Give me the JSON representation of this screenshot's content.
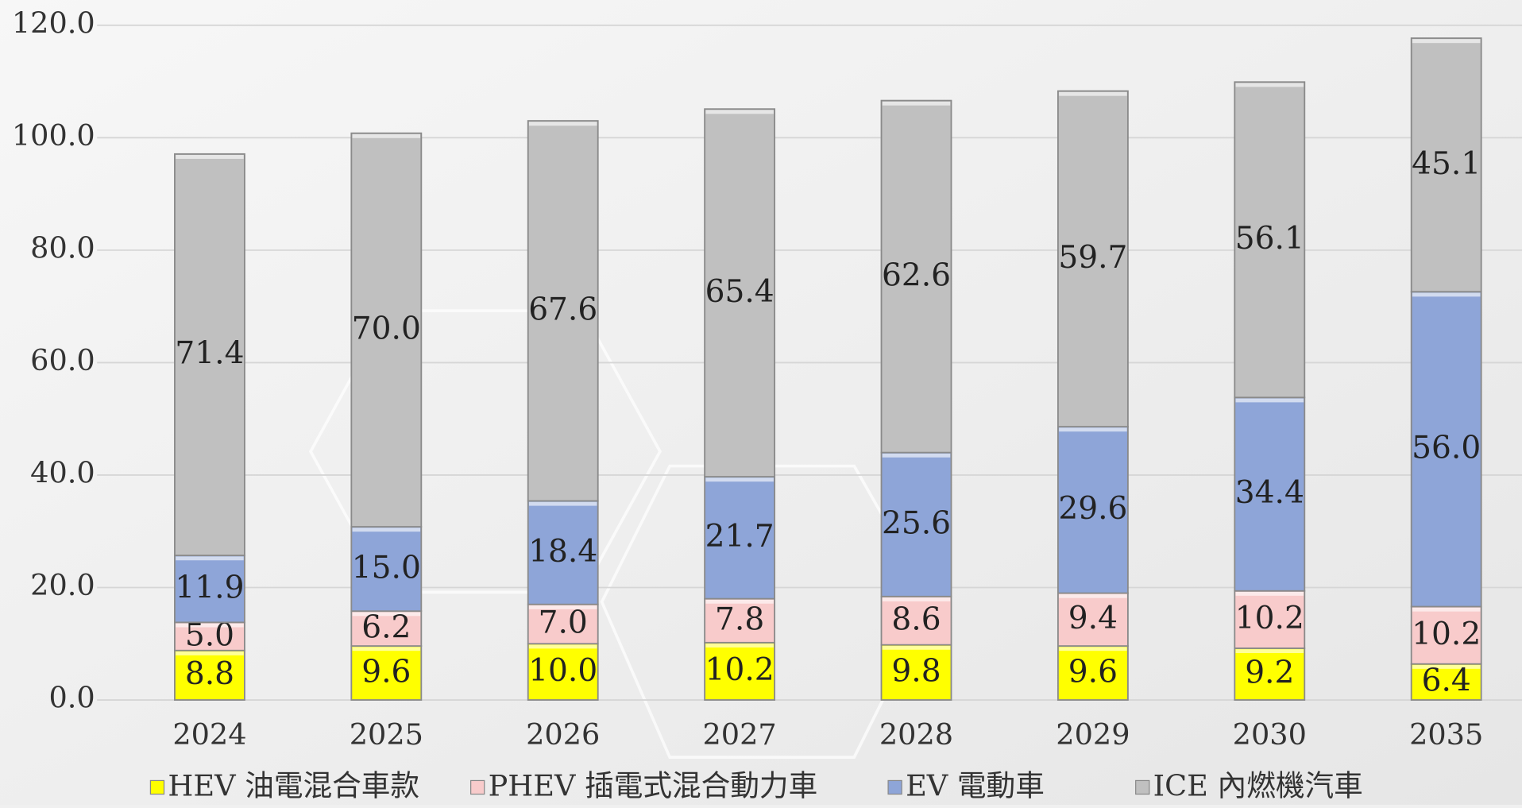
{
  "chart_data": {
    "type": "stacked_bar",
    "categories": [
      "2024",
      "2025",
      "2026",
      "2027",
      "2028",
      "2029",
      "2030",
      "2035"
    ],
    "series": [
      {
        "name": "HEV 油電混合車款",
        "color": "#ffff00",
        "values": [
          8.8,
          9.6,
          10.0,
          10.2,
          9.8,
          9.6,
          9.2,
          6.4
        ],
        "value_labels": [
          "8.8",
          "9.6",
          "10.0",
          "10.2",
          "9.8",
          "9.6",
          "9.2",
          "6.4"
        ]
      },
      {
        "name": "PHEV 插電式混合動力車",
        "color": "#f8cbcb",
        "values": [
          5.0,
          6.2,
          7.0,
          7.8,
          8.6,
          9.4,
          10.2,
          10.2
        ],
        "value_labels": [
          "5.0",
          "6.2",
          "7.0",
          "7.8",
          "8.6",
          "9.4",
          "10.2",
          "10.2"
        ]
      },
      {
        "name": "EV 電動車",
        "color": "#8ea5d8",
        "values": [
          11.9,
          15.0,
          18.4,
          21.7,
          25.6,
          29.6,
          34.4,
          56.0
        ],
        "value_labels": [
          "11.9",
          "15.0",
          "18.4",
          "21.7",
          "25.6",
          "29.6",
          "34.4",
          "56.0"
        ]
      },
      {
        "name": "ICE 內燃機汽車",
        "color": "#c0c0c0",
        "values": [
          71.4,
          70.0,
          67.6,
          65.4,
          62.6,
          59.7,
          56.1,
          45.1
        ],
        "value_labels": [
          "71.4",
          "70.0",
          "67.6",
          "65.4",
          "62.6",
          "59.7",
          "56.1",
          "45.1"
        ]
      }
    ],
    "ylim": [
      0,
      120
    ],
    "yticks": [
      {
        "value": 0,
        "label": "0.0"
      },
      {
        "value": 20,
        "label": "20.0"
      },
      {
        "value": 40,
        "label": "40.0"
      },
      {
        "value": 60,
        "label": "60.0"
      },
      {
        "value": 80,
        "label": "80.0"
      },
      {
        "value": 100,
        "label": "100.0"
      },
      {
        "value": 120,
        "label": "120.0"
      }
    ],
    "grid": true,
    "legend": "bottom"
  }
}
